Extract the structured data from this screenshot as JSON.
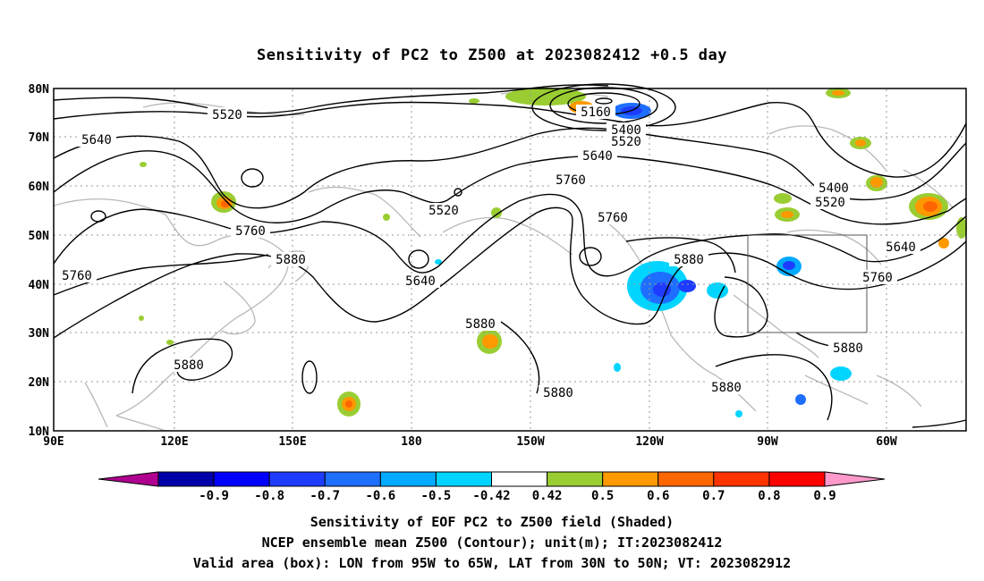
{
  "title": "Sensitivity of PC2 to Z500 at 2023082412 +0.5 day",
  "lat_labels": [
    "80N",
    "70N",
    "60N",
    "50N",
    "40N",
    "30N",
    "20N",
    "10N"
  ],
  "lon_labels": [
    "90E",
    "120E",
    "150E",
    "180",
    "150W",
    "120W",
    "90W",
    "60W"
  ],
  "contour_labels": [
    {
      "text": "5520",
      "role": "contour-label"
    },
    {
      "text": "5640",
      "role": "contour-label"
    },
    {
      "text": "5760",
      "role": "contour-label"
    },
    {
      "text": "5880",
      "role": "contour-label"
    },
    {
      "text": "5760",
      "role": "contour-label"
    },
    {
      "text": "5520",
      "role": "contour-label"
    },
    {
      "text": "5640",
      "role": "contour-label"
    },
    {
      "text": "5880",
      "role": "contour-label"
    },
    {
      "text": "5880",
      "role": "contour-label"
    },
    {
      "text": "5160",
      "role": "contour-label"
    },
    {
      "text": "5400",
      "role": "contour-label"
    },
    {
      "text": "5520",
      "role": "contour-label"
    },
    {
      "text": "5640",
      "role": "contour-label"
    },
    {
      "text": "5760",
      "role": "contour-label"
    },
    {
      "text": "5760",
      "role": "contour-label"
    },
    {
      "text": "5880",
      "role": "contour-label"
    },
    {
      "text": "5400",
      "role": "contour-label"
    },
    {
      "text": "5520",
      "role": "contour-label"
    },
    {
      "text": "5640",
      "role": "contour-label"
    },
    {
      "text": "5760",
      "role": "contour-label"
    },
    {
      "text": "5880",
      "role": "contour-label"
    },
    {
      "text": "5880",
      "role": "contour-label"
    },
    {
      "text": "5880",
      "role": "contour-label"
    }
  ],
  "colorbar": {
    "labels": [
      "-0.9",
      "-0.8",
      "-0.7",
      "-0.6",
      "-0.5",
      "-0.42",
      "0.42",
      "0.5",
      "0.6",
      "0.7",
      "0.8",
      "0.9"
    ],
    "colors": [
      "#b00090",
      "#0000a8",
      "#0000ff",
      "#1e3cff",
      "#1e6eff",
      "#00aaff",
      "#00d4ff",
      "#ffffff",
      "#9acd32",
      "#ff9900",
      "#ff6600",
      "#ff3300",
      "#ff0000",
      "#ff99cc"
    ]
  },
  "footer": {
    "line1": "Sensitivity of EOF PC2 to Z500 field (Shaded)",
    "line2": "NCEP ensemble mean Z500 (Contour); unit(m); IT:2023082412",
    "line3": "Valid area (box): LON from 95W to 65W, LAT from 30N to 50N; VT: 2023082912"
  }
}
